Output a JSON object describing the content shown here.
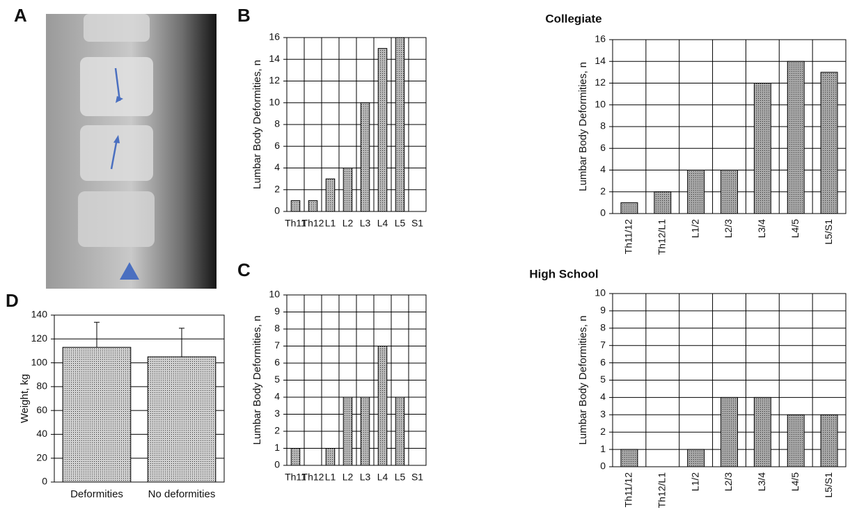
{
  "figure": {
    "panel_labels": [
      "A",
      "B",
      "C",
      "D"
    ],
    "group_titles": [
      "Collegiate",
      "High School"
    ]
  },
  "chart_data": [
    {
      "type": "bar",
      "ylabel": "Lumbar Body Deformities, n",
      "categories": [
        "Th11",
        "Th12",
        "L1",
        "L2",
        "L3",
        "L4",
        "L5",
        "S1"
      ],
      "values": [
        1,
        1,
        3,
        4,
        10,
        15,
        16,
        0
      ],
      "ylim": [
        0,
        16
      ],
      "yticks": [
        0,
        2,
        4,
        6,
        8,
        10,
        12,
        14,
        16
      ],
      "grid": true,
      "vgrid": true,
      "color": "#b8b8b8"
    },
    {
      "type": "bar",
      "ylabel": "Lumbar Body Deformities, n",
      "categories": [
        "Th11/12",
        "Th12/L1",
        "L1/2",
        "L2/3",
        "L3/4",
        "L4/5",
        "L5/S1"
      ],
      "values": [
        1,
        2,
        4,
        4,
        12,
        14,
        13
      ],
      "ylim": [
        0,
        16
      ],
      "yticks": [
        0,
        2,
        4,
        6,
        8,
        10,
        12,
        14,
        16
      ],
      "grid": true,
      "vgrid": true,
      "color": "#a8a8a8"
    },
    {
      "type": "bar",
      "ylabel": "Lumbar Body Deformities, n",
      "categories": [
        "Th11",
        "Th12",
        "L1",
        "L2",
        "L3",
        "L4",
        "L5",
        "S1"
      ],
      "values": [
        1,
        0,
        1,
        4,
        4,
        7,
        4,
        0
      ],
      "ylim": [
        0,
        10
      ],
      "yticks": [
        0,
        1,
        2,
        3,
        4,
        5,
        6,
        7,
        8,
        9,
        10
      ],
      "grid": true,
      "vgrid": true,
      "color": "#b8b8b8"
    },
    {
      "type": "bar",
      "ylabel": "Lumbar Body Deformities, n",
      "categories": [
        "Th11/12",
        "Th12/L1",
        "L1/2",
        "L2/3",
        "L3/4",
        "L4/5",
        "L5/S1"
      ],
      "values": [
        1,
        0,
        1,
        4,
        4,
        3,
        3
      ],
      "ylim": [
        0,
        10
      ],
      "yticks": [
        0,
        1,
        2,
        3,
        4,
        5,
        6,
        7,
        8,
        9,
        10
      ],
      "grid": true,
      "vgrid": true,
      "color": "#a8a8a8"
    },
    {
      "type": "bar",
      "ylabel": "Weight, kg",
      "categories": [
        "Deformities",
        "No deformities"
      ],
      "values": [
        113,
        105
      ],
      "errors": [
        21,
        24
      ],
      "ylim": [
        0,
        140
      ],
      "yticks": [
        0,
        20,
        40,
        60,
        80,
        100,
        120,
        140
      ],
      "grid": true,
      "vgrid": false,
      "color": "#d0d0d0"
    }
  ]
}
